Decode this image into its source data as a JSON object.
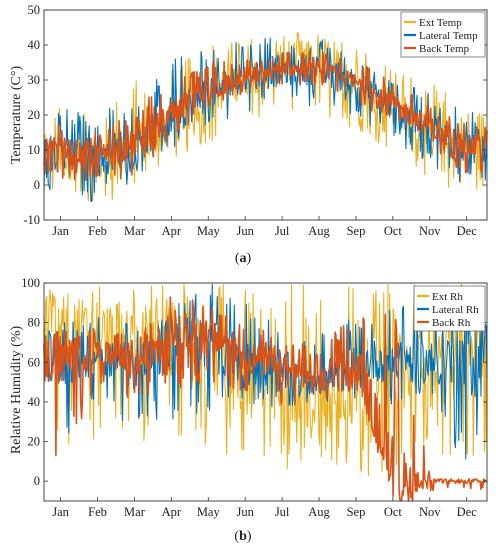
{
  "chart_data": [
    {
      "type": "line",
      "panel": "(a)",
      "title": "",
      "xlabel": "",
      "ylabel": "Temperature (C°)",
      "ylim": [
        -10,
        50
      ],
      "yticks": [
        -10,
        0,
        10,
        20,
        30,
        40,
        50
      ],
      "x_tick_labels": [
        "Jan",
        "Feb",
        "Mar",
        "Apr",
        "May",
        "Jun",
        "Jul",
        "Aug",
        "Sep",
        "Oct",
        "Nov",
        "Dec"
      ],
      "legend_position": "top-right",
      "grid": false,
      "series": [
        {
          "name": "Ext Temp",
          "color": "#EDB120",
          "mean": [
            8,
            7,
            11,
            19,
            26,
            31,
            34,
            34,
            29,
            22,
            14,
            10
          ],
          "min": [
            -3,
            -7,
            -1,
            7,
            12,
            18,
            20,
            20,
            14,
            10,
            1,
            -3
          ],
          "max": [
            25,
            22,
            30,
            38,
            40,
            42,
            44,
            43,
            39,
            34,
            30,
            22
          ]
        },
        {
          "name": "Lateral Temp",
          "color": "#0072BD",
          "mean": [
            9,
            8,
            12,
            20,
            27,
            31,
            33,
            33,
            29,
            22,
            15,
            11
          ],
          "min": [
            -2,
            -6,
            2,
            10,
            17,
            21,
            22,
            23,
            19,
            12,
            5,
            -1
          ],
          "max": [
            22,
            20,
            27,
            37,
            40,
            41,
            43,
            42,
            38,
            32,
            26,
            21
          ]
        },
        {
          "name": "Back Temp",
          "color": "#D95319",
          "mean": [
            10,
            8,
            12,
            20,
            27,
            31,
            33,
            33,
            29,
            23,
            16,
            11
          ],
          "min": [
            2,
            0,
            3,
            13,
            21,
            26,
            28,
            28,
            23,
            18,
            8,
            3
          ],
          "max": [
            18,
            15,
            22,
            31,
            35,
            37,
            38,
            38,
            35,
            30,
            23,
            17
          ]
        }
      ]
    },
    {
      "type": "line",
      "panel": "(b)",
      "title": "",
      "xlabel": "",
      "ylabel": "Relative Humidity (%)",
      "ylim": [
        -10,
        100
      ],
      "yticks": [
        0,
        20,
        40,
        60,
        80,
        100
      ],
      "x_tick_labels": [
        "Jan",
        "Feb",
        "Mar",
        "Apr",
        "May",
        "Jun",
        "Jul",
        "Aug",
        "Sep",
        "Oct",
        "Nov",
        "Dec"
      ],
      "legend_position": "top-right",
      "grid": false,
      "series": [
        {
          "name": "Ext Rh",
          "color": "#EDB120",
          "mean": [
            75,
            72,
            70,
            70,
            60,
            52,
            45,
            40,
            48,
            55,
            55,
            65
          ],
          "min": [
            10,
            20,
            20,
            18,
            15,
            10,
            5,
            3,
            2,
            5,
            10,
            10
          ],
          "max": [
            100,
            100,
            100,
            100,
            100,
            100,
            100,
            100,
            100,
            100,
            100,
            100
          ]
        },
        {
          "name": "Lateral Rh",
          "color": "#0072BD",
          "mean": [
            62,
            65,
            58,
            70,
            68,
            60,
            55,
            52,
            60,
            62,
            60,
            62
          ],
          "min": [
            10,
            40,
            25,
            30,
            35,
            40,
            35,
            40,
            42,
            35,
            40,
            0
          ],
          "max": [
            80,
            85,
            80,
            95,
            100,
            90,
            82,
            78,
            85,
            90,
            88,
            90
          ]
        },
        {
          "name": "Back Rh",
          "color": "#D95319",
          "mean": [
            63,
            65,
            58,
            76,
            72,
            63,
            55,
            50,
            60,
            0,
            0,
            0
          ],
          "min": [
            10,
            50,
            40,
            45,
            50,
            42,
            38,
            40,
            45,
            -5,
            -5,
            -5
          ],
          "max": [
            75,
            78,
            72,
            95,
            90,
            80,
            72,
            70,
            85,
            85,
            0,
            0
          ]
        }
      ]
    }
  ],
  "captions": {
    "a": "(a)",
    "b": "(b)"
  }
}
